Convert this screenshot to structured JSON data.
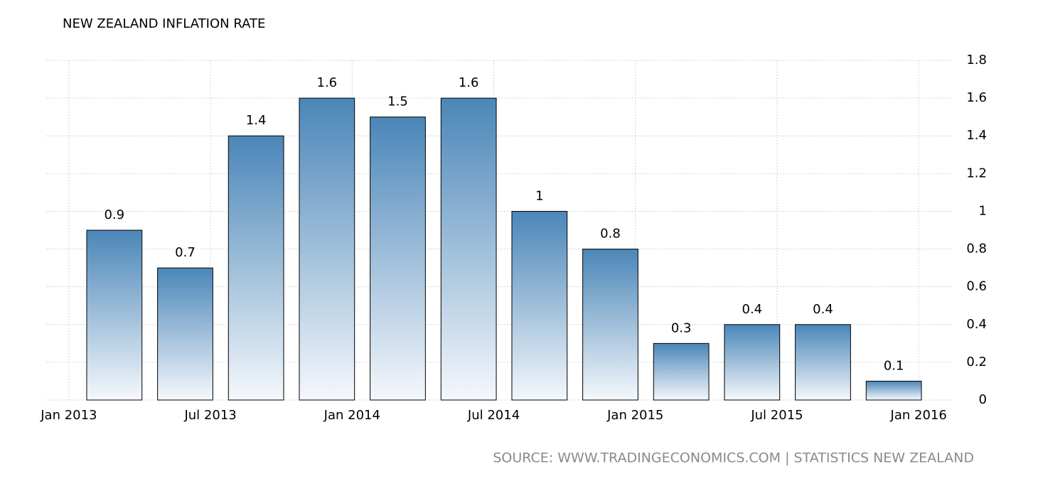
{
  "chart_data": {
    "type": "bar",
    "title": "NEW ZEALAND INFLATION RATE",
    "source": "SOURCE: WWW.TRADINGECONOMICS.COM | STATISTICS NEW ZEALAND",
    "categories": [
      null,
      null,
      null,
      null,
      null,
      null,
      null,
      null,
      null,
      null,
      null,
      null
    ],
    "values": [
      0.9,
      0.7,
      1.4,
      1.6,
      1.5,
      1.6,
      1,
      0.8,
      0.3,
      0.4,
      0.4,
      0.1
    ],
    "color": "#4a86b8",
    "ylim": [
      0,
      1.8
    ],
    "yticks": [
      0,
      0.2,
      0.4,
      0.6,
      0.8,
      1,
      1.2,
      1.4,
      1.6,
      1.8
    ],
    "xlim": [
      2012.92,
      2016.12
    ],
    "xticks": [
      {
        "value": 2013,
        "label": "Jan 2013"
      },
      {
        "value": 2013.5,
        "label": "Jul 2013"
      },
      {
        "value": 2014,
        "label": "Jan 2014"
      },
      {
        "value": 2014.5,
        "label": "Jul 2014"
      },
      {
        "value": 2015,
        "label": "Jan 2015"
      },
      {
        "value": 2015.5,
        "label": "Jul 2015"
      },
      {
        "value": 2016,
        "label": "Jan 2016"
      }
    ],
    "grid": true
  }
}
